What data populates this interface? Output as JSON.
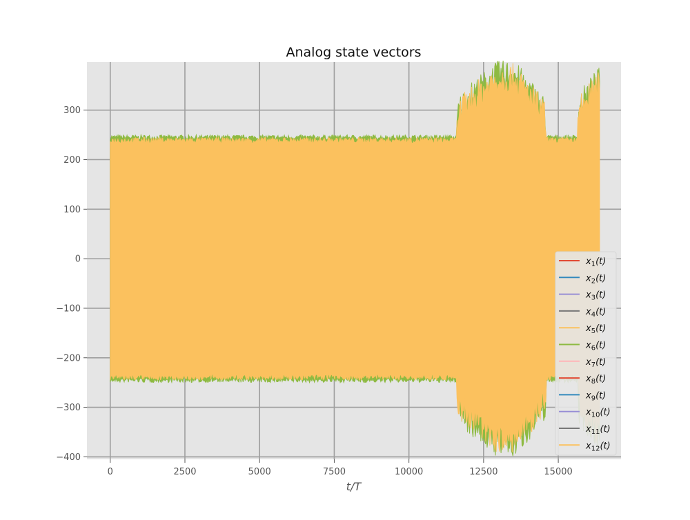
{
  "chart_data": {
    "type": "line",
    "title": "Analog state vectors",
    "xlabel": "t/T",
    "ylabel": "",
    "xlim": [
      -780,
      17100
    ],
    "ylim": [
      -405,
      397
    ],
    "xticks": [
      0,
      2500,
      5000,
      7500,
      10000,
      12500,
      15000
    ],
    "xtick_labels": [
      "0",
      "2500",
      "5000",
      "7500",
      "10000",
      "12500",
      "15000"
    ],
    "yticks": [
      -400,
      -300,
      -200,
      -100,
      0,
      100,
      200,
      300
    ],
    "ytick_labels": [
      "−400",
      "−300",
      "−200",
      "−100",
      "0",
      "100",
      "200",
      "300"
    ],
    "grid": true,
    "legend_position": "right",
    "x_range": [
      0,
      16384
    ],
    "series": [
      {
        "name": "x1(t)",
        "color": "#E24A33"
      },
      {
        "name": "x2(t)",
        "color": "#348ABD"
      },
      {
        "name": "x3(t)",
        "color": "#988ED5"
      },
      {
        "name": "x4(t)",
        "color": "#777777"
      },
      {
        "name": "x5(t)",
        "color": "#FBC15E"
      },
      {
        "name": "x6(t)",
        "color": "#8EBA42"
      },
      {
        "name": "x7(t)",
        "color": "#FFB5B8"
      },
      {
        "name": "x8(t)",
        "color": "#E24A33"
      },
      {
        "name": "x9(t)",
        "color": "#348ABD"
      },
      {
        "name": "x10(t)",
        "color": "#988ED5"
      },
      {
        "name": "x11(t)",
        "color": "#777777"
      },
      {
        "name": "x12(t)",
        "color": "#FBC15E"
      }
    ],
    "envelope": [
      {
        "x": 0,
        "amplitude": 245
      },
      {
        "x": 11600,
        "amplitude": 245
      },
      {
        "x": 11650,
        "amplitude": 290
      },
      {
        "x": 12000,
        "amplitude": 315
      },
      {
        "x": 12900,
        "amplitude": 360
      },
      {
        "x": 13500,
        "amplitude": 365
      },
      {
        "x": 14000,
        "amplitude": 330
      },
      {
        "x": 14550,
        "amplitude": 290
      },
      {
        "x": 14600,
        "amplitude": 245
      },
      {
        "x": 15650,
        "amplitude": 245
      },
      {
        "x": 15700,
        "amplitude": 300
      },
      {
        "x": 16100,
        "amplitude": 330
      },
      {
        "x": 16384,
        "amplitude": 350
      }
    ]
  }
}
